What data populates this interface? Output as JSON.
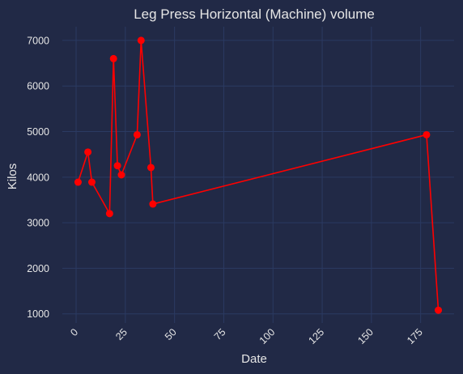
{
  "chart_data": {
    "type": "line",
    "title": "Leg Press Horizontal (Machine) volume",
    "xlabel": "Date",
    "ylabel": "Kilos",
    "xlim": [
      -7,
      192
    ],
    "ylim": [
      800,
      7300
    ],
    "xticks": [
      0,
      25,
      50,
      75,
      100,
      125,
      150,
      175
    ],
    "yticks": [
      1000,
      2000,
      3000,
      4000,
      5000,
      6000,
      7000
    ],
    "grid": true,
    "series": [
      {
        "color": "#ff0000",
        "x": [
          1,
          6,
          8,
          17,
          19,
          21,
          23,
          31,
          33,
          38,
          39,
          178,
          184
        ],
        "y": [
          3890,
          4550,
          3890,
          3200,
          6600,
          4250,
          4050,
          4930,
          7000,
          4210,
          3410,
          4930,
          1080
        ]
      }
    ]
  }
}
